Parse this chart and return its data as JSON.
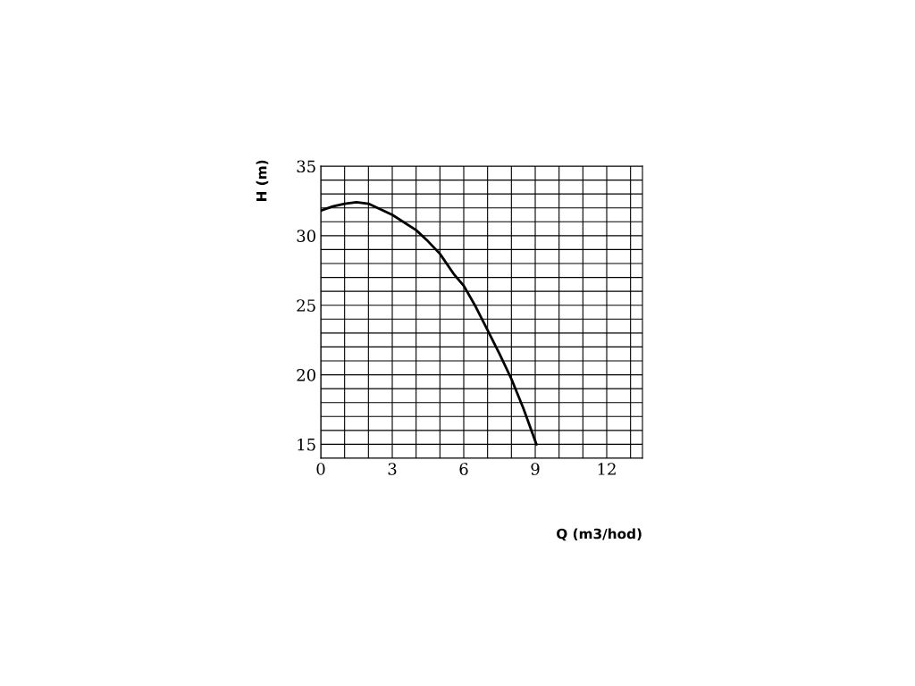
{
  "chart_data": {
    "type": "line",
    "xlabel": "Q (m3/hod)",
    "ylabel": "H (m)",
    "x": [
      0,
      0.5,
      1,
      1.5,
      2,
      3,
      4,
      4.5,
      5,
      5.6,
      6,
      6.5,
      7,
      7.5,
      8,
      8.5,
      9.05
    ],
    "series": [
      {
        "color": "#000000",
        "values": [
          31.8,
          32.1,
          32.3,
          32.4,
          32.3,
          31.5,
          30.4,
          29.6,
          28.7,
          27.2,
          26.4,
          24.9,
          23.2,
          21.5,
          19.7,
          17.6,
          15
        ]
      }
    ],
    "xlim": [
      0,
      13.5
    ],
    "xticks": [
      0,
      3,
      6,
      9,
      12
    ],
    "ylim": [
      14,
      35
    ],
    "yticks": [
      15,
      20,
      25,
      30,
      35
    ],
    "grid": true,
    "marker": "none",
    "line_style": "solid"
  }
}
